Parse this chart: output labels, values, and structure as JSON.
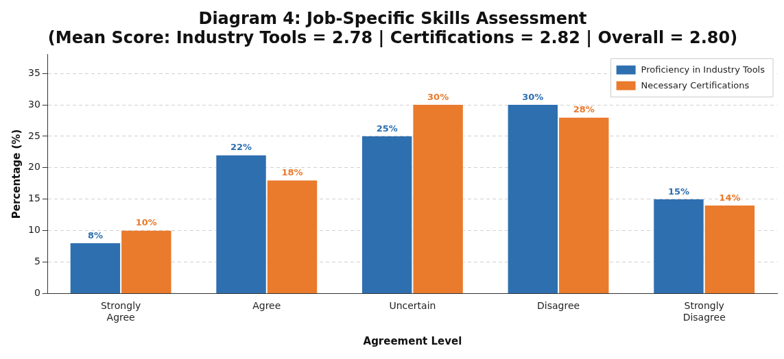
{
  "chart_data": {
    "type": "bar",
    "title": "Diagram 4: Job-Specific Skills Assessment",
    "subtitle": "(Mean Score: Industry Tools = 2.78 | Certifications = 2.82 | Overall = 2.80)",
    "xlabel": "Agreement Level",
    "ylabel": "Percentage (%)",
    "categories": [
      "Strongly Agree",
      "Agree",
      "Uncertain",
      "Disagree",
      "Strongly Disagree"
    ],
    "series": [
      {
        "name": "Proficiency in Industry Tools",
        "color": "#2e6fb0",
        "values": [
          8,
          22,
          25,
          30,
          15
        ],
        "value_labels": [
          "8%",
          "22%",
          "25%",
          "30%",
          "15%"
        ]
      },
      {
        "name": "Necessary Certifications",
        "color": "#ea7a2c",
        "values": [
          10,
          18,
          30,
          28,
          14
        ],
        "value_labels": [
          "10%",
          "18%",
          "30%",
          "28%",
          "14%"
        ]
      }
    ],
    "ylim": [
      0,
      38
    ],
    "yticks": [
      0,
      5,
      10,
      15,
      20,
      25,
      30,
      35
    ],
    "grid": "y",
    "legend": "top right"
  }
}
